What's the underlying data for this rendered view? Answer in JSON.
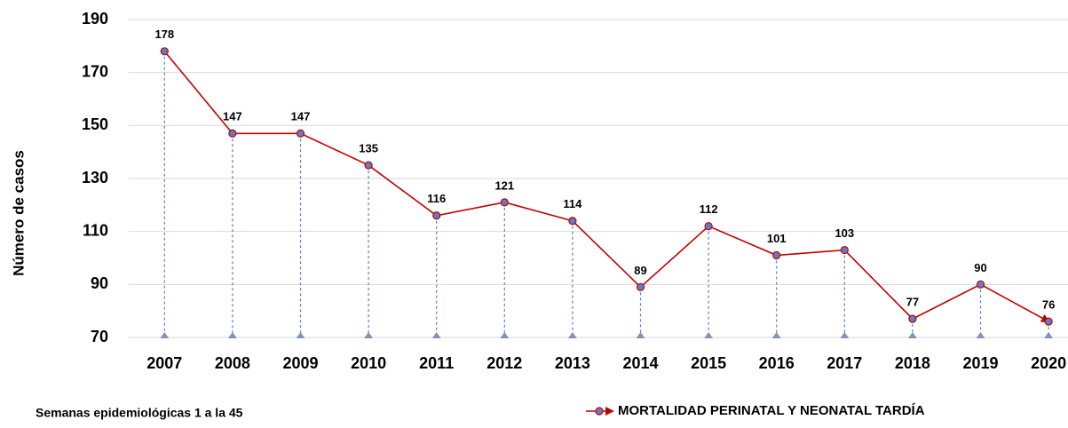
{
  "chart_data": {
    "type": "line",
    "y_label": "Número de casos",
    "footnote": "Semanas epidemiológicas 1 a la 45",
    "categories": [
      "2007",
      "2008",
      "2009",
      "2010",
      "2011",
      "2012",
      "2013",
      "2014",
      "2015",
      "2016",
      "2017",
      "2018",
      "2019",
      "2020"
    ],
    "series": [
      {
        "name": "MORTALIDAD PERINATAL Y NEONATAL TARDÍA",
        "color": "#c00000",
        "marker_color": "#5b7fc7",
        "values": [
          178,
          147,
          147,
          135,
          116,
          121,
          114,
          89,
          112,
          101,
          103,
          77,
          90,
          76
        ]
      }
    ],
    "ylim": [
      70,
      190
    ],
    "yticks": [
      70,
      90,
      110,
      130,
      150,
      170,
      190
    ],
    "grid": true
  }
}
